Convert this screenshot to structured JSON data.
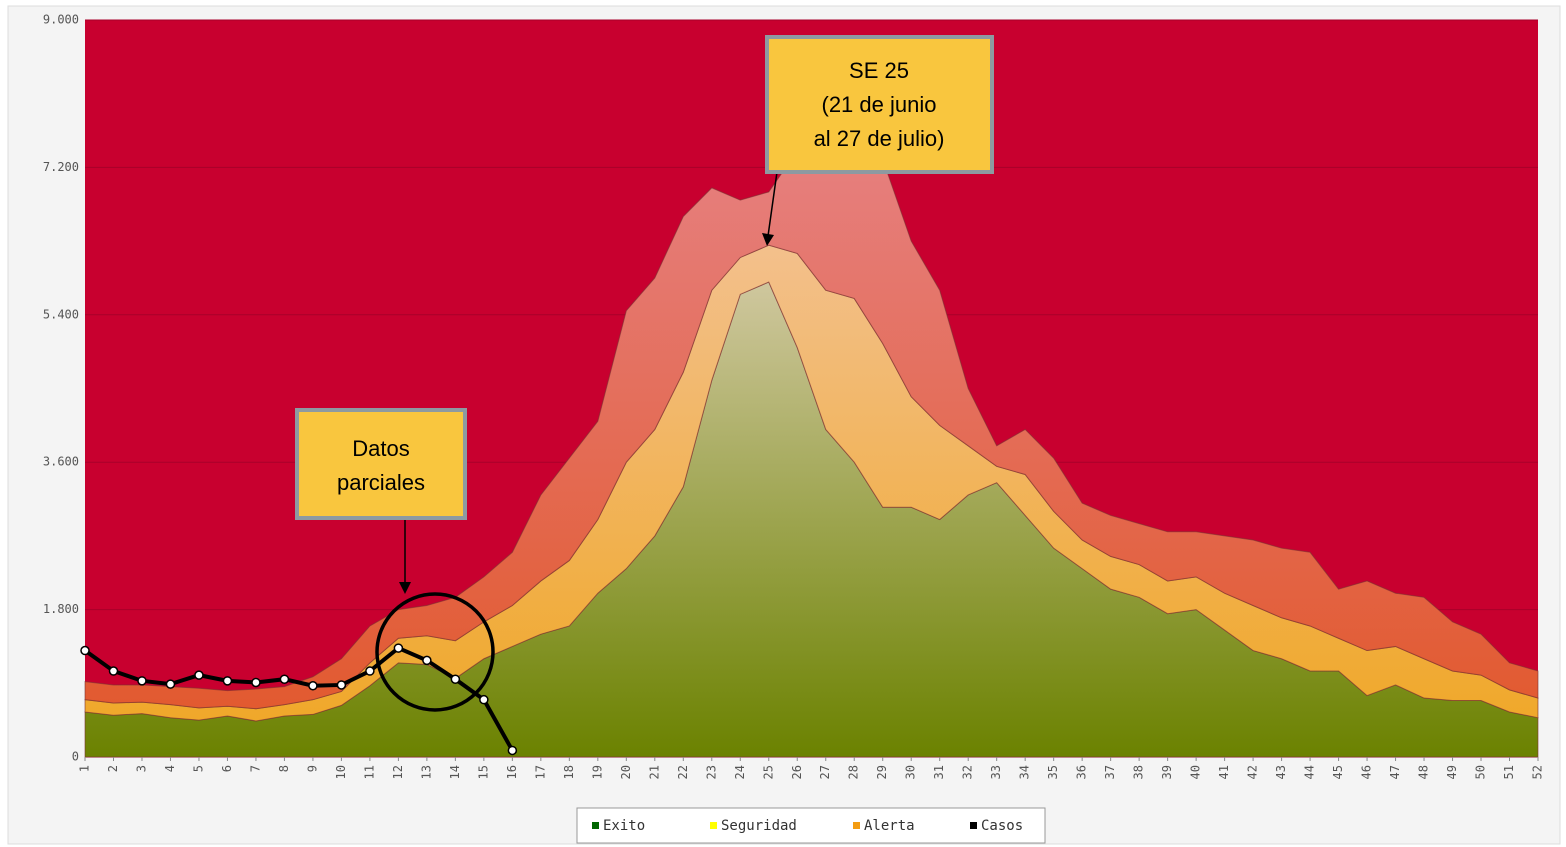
{
  "chart_data": {
    "type": "area",
    "stacked": true,
    "categories": [
      "1",
      "2",
      "3",
      "4",
      "5",
      "6",
      "7",
      "8",
      "9",
      "10",
      "11",
      "12",
      "13",
      "14",
      "15",
      "16",
      "17",
      "18",
      "19",
      "20",
      "21",
      "22",
      "23",
      "24",
      "25",
      "26",
      "27",
      "28",
      "29",
      "30",
      "31",
      "32",
      "33",
      "34",
      "35",
      "36",
      "37",
      "38",
      "39",
      "40",
      "41",
      "42",
      "43",
      "44",
      "45",
      "46",
      "47",
      "48",
      "49",
      "50",
      "51",
      "52"
    ],
    "ylim": [
      0,
      9000
    ],
    "yticks": [
      0,
      {
        "value": 1800,
        "label": "1.800"
      },
      {
        "value": 3600,
        "label": "3.600"
      },
      {
        "value": 5400,
        "label": "5.400"
      },
      {
        "value": 7200,
        "label": "7.200"
      },
      {
        "value": 9000,
        "label": "9.000"
      }
    ],
    "grid": true,
    "legend": "bottom",
    "series": [
      {
        "name": "Exito",
        "color": "#006600",
        "values": [
          550,
          510,
          530,
          480,
          450,
          500,
          440,
          500,
          520,
          630,
          870,
          1150,
          1130,
          960,
          1200,
          1350,
          1500,
          1600,
          2000,
          2300,
          2700,
          3300,
          4600,
          5650,
          5800,
          5000,
          4000,
          3600,
          3050,
          3050,
          2900,
          3200,
          3350,
          2950,
          2550,
          2300,
          2050,
          1950,
          1750,
          1800,
          1550,
          1300,
          1200,
          1050,
          1050,
          750,
          880,
          720,
          690,
          690,
          550,
          480
        ]
      },
      {
        "name": "Seguridad",
        "color": "#ffff00",
        "values": [
          150,
          150,
          140,
          160,
          150,
          120,
          150,
          140,
          180,
          170,
          280,
          300,
          350,
          460,
          450,
          500,
          650,
          800,
          900,
          1300,
          1300,
          1400,
          1100,
          450,
          450,
          1150,
          1700,
          2000,
          2000,
          1350,
          1150,
          600,
          200,
          500,
          450,
          350,
          400,
          400,
          400,
          400,
          450,
          550,
          500,
          550,
          400,
          550,
          470,
          480,
          360,
          310,
          270,
          240
        ]
      },
      {
        "name": "Alerta",
        "color": "#f39c12",
        "values": [
          220,
          220,
          210,
          220,
          240,
          190,
          240,
          220,
          280,
          400,
          450,
          350,
          370,
          530,
          550,
          650,
          1050,
          1250,
          1200,
          1850,
          1850,
          1900,
          1250,
          700,
          650,
          1250,
          1800,
          1900,
          2250,
          1900,
          1650,
          700,
          250,
          550,
          650,
          450,
          500,
          500,
          600,
          550,
          700,
          800,
          850,
          900,
          600,
          850,
          650,
          750,
          600,
          500,
          330,
          330
        ]
      },
      {
        "name": "Casos",
        "type": "line",
        "color": "#000000",
        "values": [
          1300,
          1050,
          930,
          890,
          1000,
          930,
          910,
          950,
          870,
          880,
          1050,
          1330,
          1180,
          950,
          700,
          80,
          null,
          null,
          null,
          null,
          null,
          null,
          null,
          null,
          null,
          null,
          null,
          null,
          null,
          null,
          null,
          null,
          null,
          null,
          null,
          null,
          null,
          null,
          null,
          null,
          null,
          null,
          null,
          null,
          null,
          null,
          null,
          null,
          null,
          null,
          null,
          null
        ]
      }
    ],
    "annotations": [
      {
        "lines": [
          "SE 25",
          "(21  de junio",
          "al 27 de julio)"
        ]
      },
      {
        "lines": [
          "Datos",
          "parciales"
        ]
      }
    ]
  }
}
